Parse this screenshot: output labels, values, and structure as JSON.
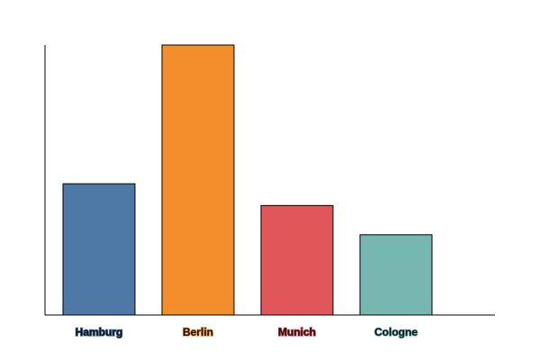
{
  "chart_data": {
    "type": "bar",
    "categories": [
      "Hamburg",
      "Berlin",
      "Munich",
      "Cologne"
    ],
    "values": [
      1.75,
      3.6,
      1.46,
      1.07
    ],
    "colors": [
      "#4e79a7",
      "#f28e2b",
      "#e15759",
      "#76b7b2"
    ],
    "ylim": [
      0,
      3.6
    ],
    "grid": false
  }
}
